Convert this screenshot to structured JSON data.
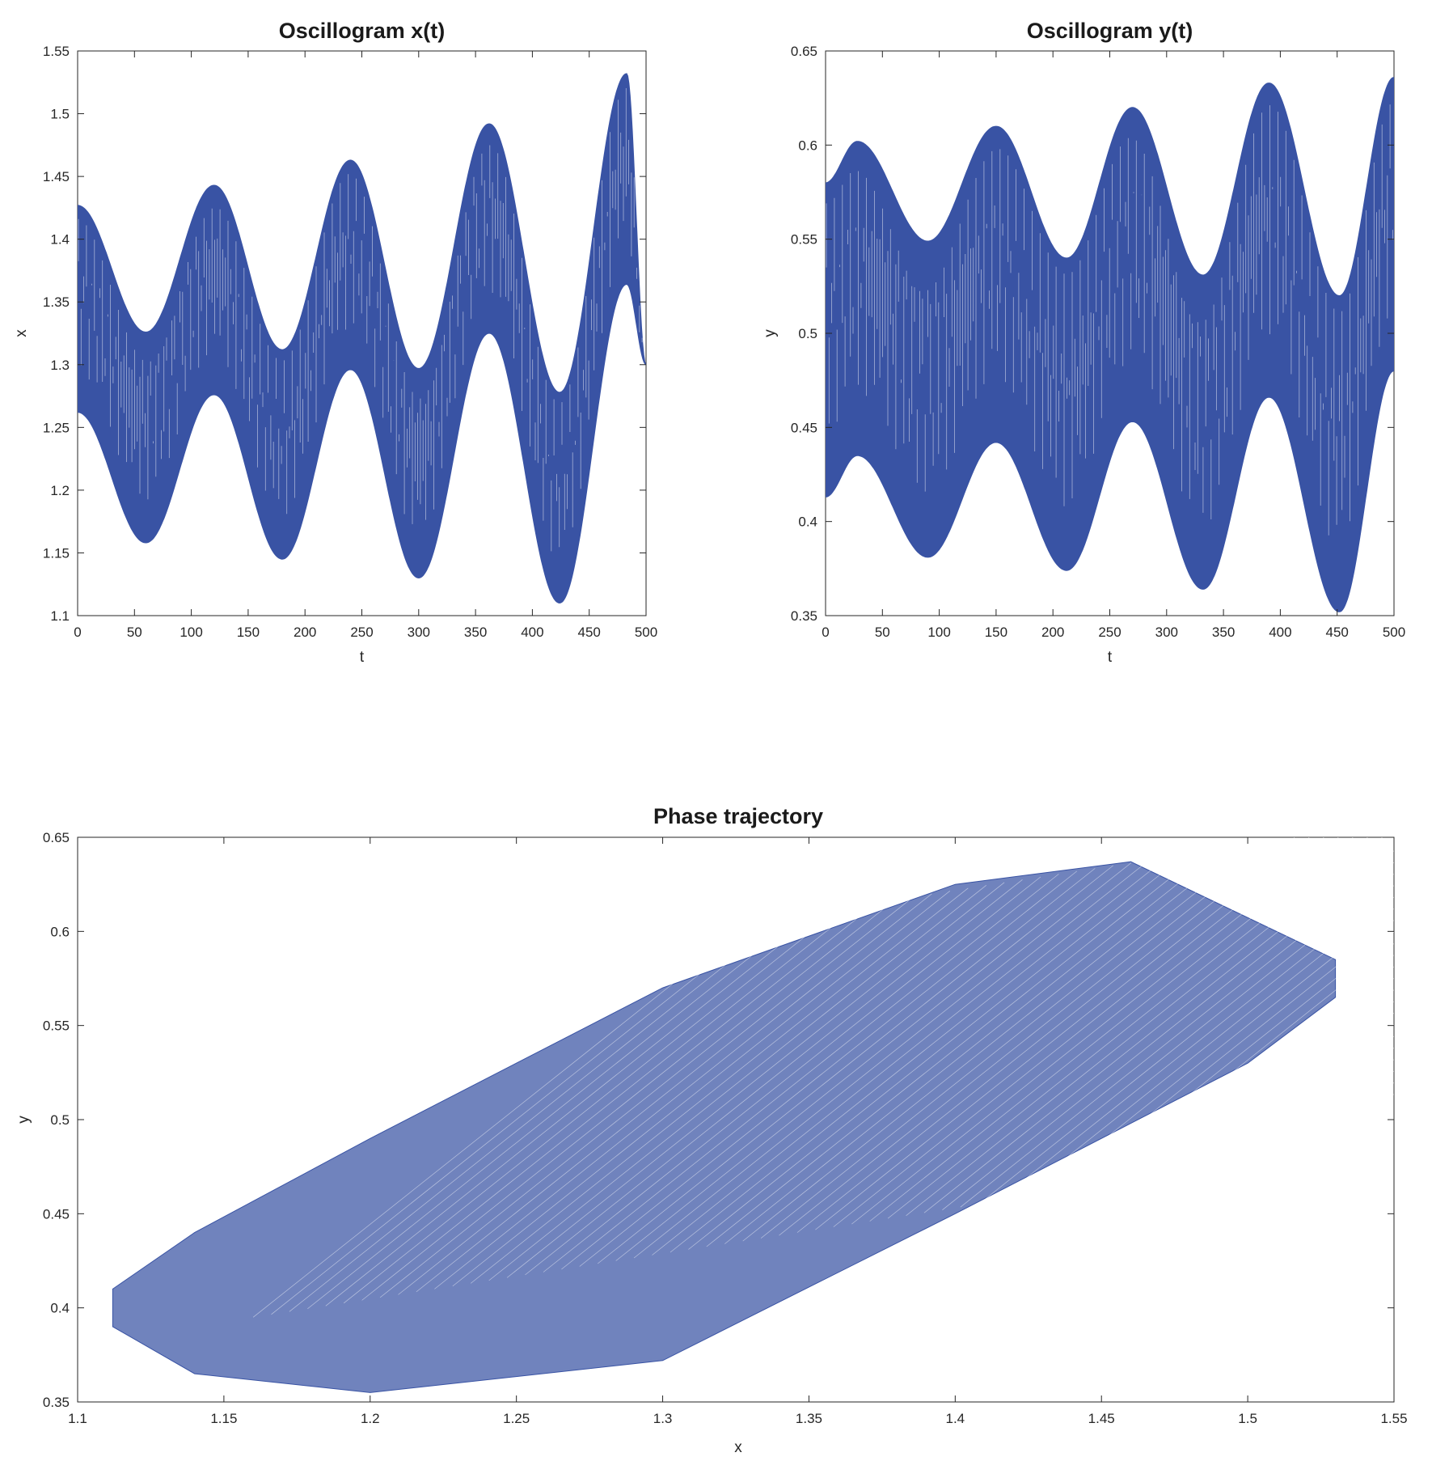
{
  "colors": {
    "series": "#3953a4",
    "axis": "#262626",
    "background": "#ffffff"
  },
  "chart_data": [
    {
      "id": "x_osc",
      "type": "line",
      "title": "Oscillogram x(t)",
      "xlabel": "t",
      "ylabel": "x",
      "xlim": [
        0,
        500
      ],
      "ylim": [
        1.1,
        1.55
      ],
      "xticks": [
        "0",
        "50",
        "100",
        "150",
        "200",
        "250",
        "300",
        "350",
        "400",
        "450",
        "500"
      ],
      "yticks": [
        "1.1",
        "1.15",
        "1.2",
        "1.25",
        "1.3",
        "1.35",
        "1.4",
        "1.45",
        "1.5",
        "1.55"
      ],
      "grid": false,
      "series": [
        {
          "color": "#3953a4",
          "style": "dense fast oscillation filling band between envelopes",
          "upper_envelope": {
            "t": [
              0,
              60,
              120,
              180,
              240,
              300,
              362,
              424,
              483,
              500
            ],
            "x": [
              1.427,
              1.326,
              1.443,
              1.312,
              1.463,
              1.297,
              1.492,
              1.278,
              1.532,
              1.3
            ]
          },
          "lower_envelope": {
            "t": [
              0,
              60,
              120,
              180,
              240,
              300,
              362,
              424,
              483,
              500
            ],
            "x": [
              1.262,
              1.158,
              1.276,
              1.145,
              1.296,
              1.13,
              1.325,
              1.11,
              1.364,
              1.3
            ]
          }
        }
      ]
    },
    {
      "id": "y_osc",
      "type": "line",
      "title": "Oscillogram y(t)",
      "xlabel": "t",
      "ylabel": "y",
      "xlim": [
        0,
        500
      ],
      "ylim": [
        0.35,
        0.65
      ],
      "xticks": [
        "0",
        "50",
        "100",
        "150",
        "200",
        "250",
        "300",
        "350",
        "400",
        "450",
        "500"
      ],
      "yticks": [
        "0.35",
        "0.4",
        "0.45",
        "0.5",
        "0.55",
        "0.6",
        "0.65"
      ],
      "grid": false,
      "series": [
        {
          "color": "#3953a4",
          "style": "dense fast oscillation filling band between envelopes",
          "upper_envelope": {
            "t": [
              0,
              28,
              90,
              150,
              212,
              270,
              332,
              390,
              452,
              500
            ],
            "y": [
              0.58,
              0.602,
              0.549,
              0.61,
              0.54,
              0.62,
              0.531,
              0.633,
              0.52,
              0.636
            ]
          },
          "lower_envelope": {
            "t": [
              0,
              28,
              90,
              150,
              212,
              270,
              332,
              390,
              452,
              500
            ],
            "y": [
              0.413,
              0.435,
              0.381,
              0.442,
              0.374,
              0.453,
              0.364,
              0.466,
              0.352,
              0.48
            ]
          }
        }
      ]
    },
    {
      "id": "phase",
      "type": "line",
      "title": "Phase trajectory",
      "xlabel": "x",
      "ylabel": "y",
      "xlim": [
        1.1,
        1.55
      ],
      "ylim": [
        0.35,
        0.65
      ],
      "xticks": [
        "1.1",
        "1.15",
        "1.2",
        "1.25",
        "1.3",
        "1.35",
        "1.4",
        "1.45",
        "1.5",
        "1.55"
      ],
      "yticks": [
        "0.35",
        "0.4",
        "0.45",
        "0.5",
        "0.55",
        "0.6",
        "0.65"
      ],
      "grid": false,
      "series": [
        {
          "color": "#3953a4",
          "style": "thin-line closed loops tilted along the diagonal, filling region",
          "region_outline": {
            "x": [
              1.112,
              1.14,
              1.2,
              1.3,
              1.4,
              1.46,
              1.53,
              1.53,
              1.5,
              1.4,
              1.3,
              1.2,
              1.14,
              1.112
            ],
            "y": [
              0.41,
              0.44,
              0.49,
              0.57,
              0.625,
              0.637,
              0.585,
              0.565,
              0.53,
              0.45,
              0.372,
              0.355,
              0.365,
              0.39
            ]
          }
        }
      ]
    }
  ]
}
